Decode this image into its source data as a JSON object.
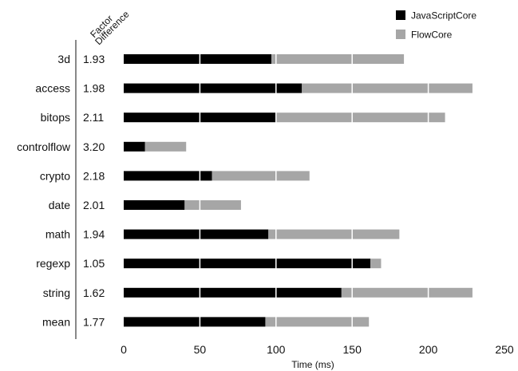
{
  "chart_data": {
    "type": "bar",
    "stacked": true,
    "orientation": "horizontal",
    "categories": [
      "3d",
      "access",
      "bitops",
      "controlflow",
      "crypto",
      "date",
      "math",
      "regexp",
      "string",
      "mean"
    ],
    "factor_header": [
      "Factor",
      "Difference"
    ],
    "factor_difference": [
      "1.93",
      "1.98",
      "2.11",
      "3.20",
      "2.18",
      "2.01",
      "1.94",
      "1.05",
      "1.62",
      "1.77"
    ],
    "series": [
      {
        "name": "JavaScriptCore",
        "color": "#000000",
        "values": [
          97,
          117,
          100,
          14,
          58,
          40,
          95,
          162,
          143,
          93
        ]
      },
      {
        "name": "FlowCore",
        "color": "#a6a6a6",
        "values": [
          87,
          112,
          111,
          27,
          64,
          37,
          86,
          7,
          86,
          68
        ]
      }
    ],
    "xlabel": "Time (ms)",
    "ylabel": "",
    "xlim": [
      0,
      250
    ],
    "xticks": [
      0,
      50,
      100,
      150,
      200,
      250
    ],
    "vertical_gridlines_on_bars": [
      50,
      100,
      150,
      200
    ],
    "legend_position": "top-right"
  }
}
